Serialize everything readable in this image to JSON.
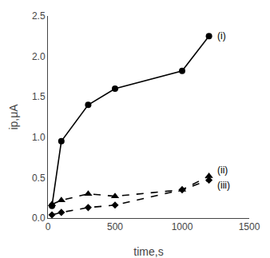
{
  "chart_data": {
    "type": "line",
    "x_label": "time,s",
    "y_label": "ip,μA",
    "x": [
      30,
      100,
      300,
      500,
      1000,
      1200
    ],
    "series": [
      {
        "name": "(i)",
        "color": "#000000",
        "marker": "circle",
        "line_style": "solid",
        "values": [
          0.15,
          0.95,
          1.4,
          1.6,
          1.82,
          2.25
        ]
      },
      {
        "name": "(ii)",
        "color": "#000000",
        "marker": "triangle-up",
        "line_style": "dashed",
        "values": [
          0.17,
          0.22,
          0.3,
          0.27,
          0.35,
          0.52
        ]
      },
      {
        "name": "(iii)",
        "color": "#000000",
        "marker": "diamond",
        "line_style": "dashed",
        "values": [
          0.04,
          0.07,
          0.13,
          0.16,
          0.35,
          0.47
        ]
      }
    ],
    "xlim": [
      0,
      1500
    ],
    "xticks": [
      0,
      500,
      1000,
      1500
    ],
    "ylim": [
      0,
      2.5
    ],
    "yticks": [
      {
        "value": 0,
        "label": "0.0"
      },
      0.5,
      {
        "value": 1,
        "label": "1.0"
      },
      1.5,
      {
        "value": 2,
        "label": "2.0"
      },
      2.5
    ],
    "grid": false
  }
}
